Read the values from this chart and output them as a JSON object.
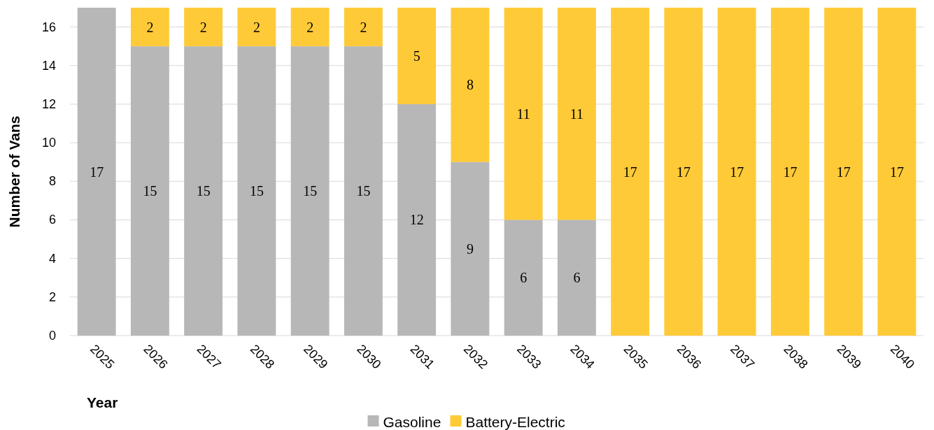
{
  "chart_data": {
    "type": "bar",
    "stacked": true,
    "xlabel": "Year",
    "ylabel": "Number of Vans",
    "categories": [
      "2025",
      "2026",
      "2027",
      "2028",
      "2029",
      "2030",
      "2031",
      "2032",
      "2033",
      "2034",
      "2035",
      "2036",
      "2037",
      "2038",
      "2039",
      "2040"
    ],
    "series": [
      {
        "name": "Gasoline",
        "color": "#b7b7b7",
        "values": [
          17,
          15,
          15,
          15,
          15,
          15,
          12,
          9,
          6,
          6,
          0,
          0,
          0,
          0,
          0,
          0
        ],
        "value_labels": [
          "17",
          "15",
          "15",
          "15",
          "15",
          "15",
          "12",
          "9",
          "6",
          "6",
          null,
          null,
          null,
          null,
          null,
          null
        ]
      },
      {
        "name": "Battery-Electric",
        "color": "#ffca38",
        "values": [
          0,
          2,
          2,
          2,
          2,
          2,
          5,
          8,
          11,
          11,
          17,
          17,
          17,
          17,
          17,
          17
        ],
        "value_labels": [
          null,
          "2",
          "2",
          "2",
          "2",
          "2",
          "5",
          "8",
          "11",
          "11",
          "17",
          "17",
          "17",
          "17",
          "17",
          "17"
        ]
      }
    ],
    "ylim": [
      0,
      17
    ],
    "yticks": [
      0,
      2,
      4,
      6,
      8,
      10,
      12,
      14,
      16
    ],
    "grid": "y",
    "legend": "bottom"
  }
}
